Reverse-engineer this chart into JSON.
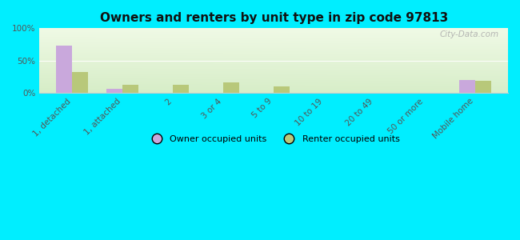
{
  "title": "Owners and renters by unit type in zip code 97813",
  "categories": [
    "1, detached",
    "1, attached",
    "2",
    "3 or 4",
    "5 to 9",
    "10 to 19",
    "20 to 49",
    "50 or more",
    "Mobile home"
  ],
  "owner_values": [
    73,
    7,
    0,
    0,
    0,
    0,
    0,
    0,
    20
  ],
  "renter_values": [
    33,
    13,
    13,
    17,
    10,
    0,
    0,
    0,
    19
  ],
  "owner_color": "#c9a8dc",
  "renter_color": "#b8c87a",
  "background_color": "#00eeff",
  "grad_top": "#e8f5e0",
  "grad_bottom": "#d0e8c0",
  "ylabel_ticks": [
    "0%",
    "50%",
    "100%"
  ],
  "ytick_values": [
    0,
    50,
    100
  ],
  "ylim": [
    0,
    100
  ],
  "bar_width": 0.32,
  "legend_owner": "Owner occupied units",
  "legend_renter": "Renter occupied units",
  "watermark": "City-Data.com",
  "title_fontsize": 11,
  "tick_fontsize": 7.5,
  "legend_fontsize": 8
}
